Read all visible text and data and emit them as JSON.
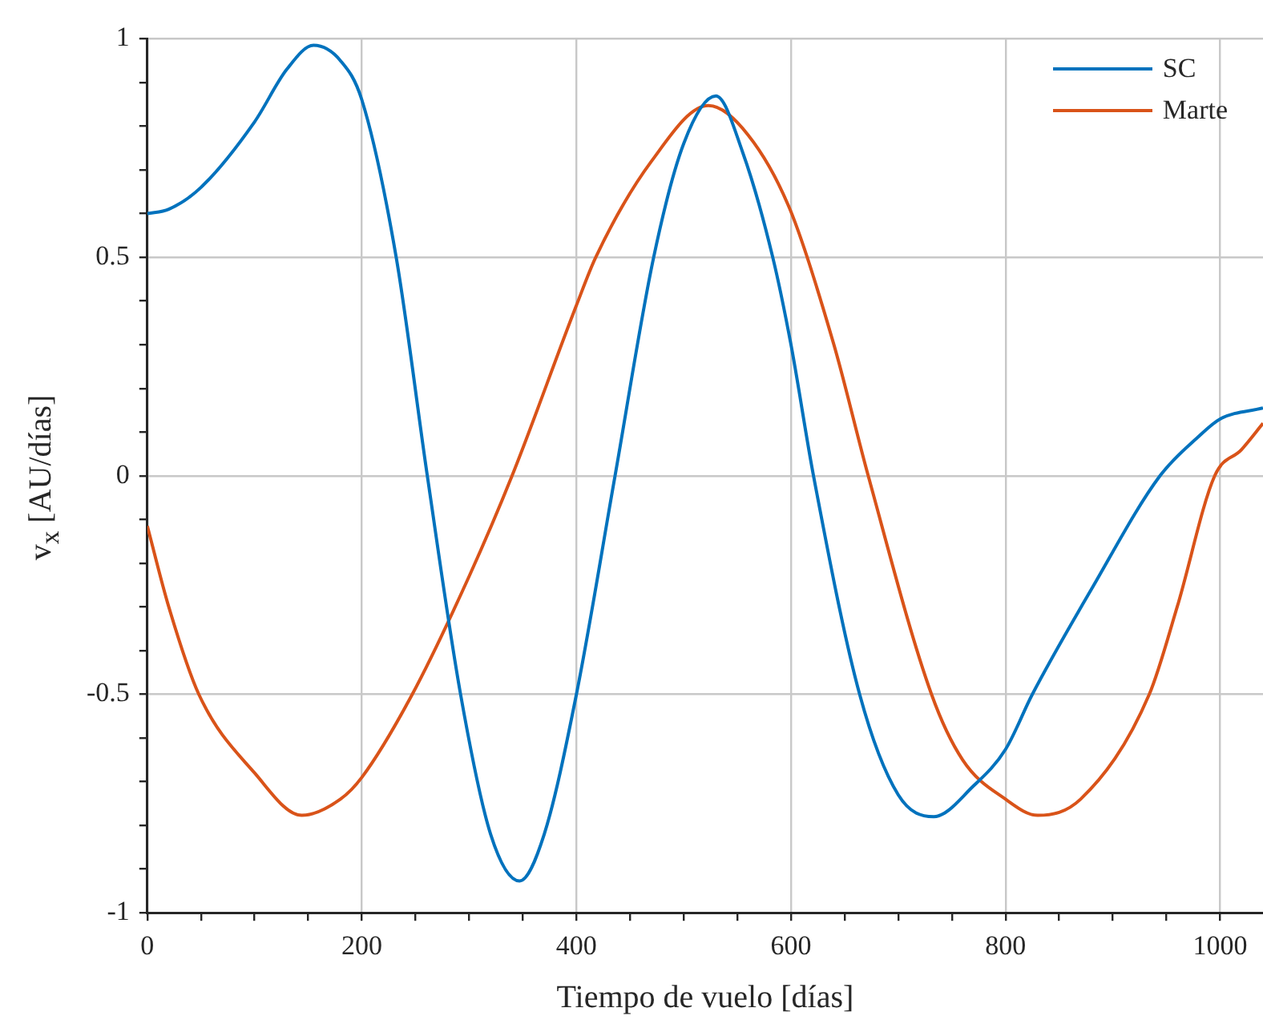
{
  "chart_data": {
    "type": "line",
    "xlabel": "Tiempo de vuelo [días]",
    "ylabel": "v$_{x}$ [AU/días]",
    "xlim": [
      0,
      1040
    ],
    "ylim": [
      -1,
      1
    ],
    "xticks": [
      0,
      {
        "value": 50,
        "label": null
      },
      {
        "value": 100,
        "label": null
      },
      {
        "value": 150,
        "label": null
      },
      200,
      {
        "value": 250,
        "label": null
      },
      {
        "value": 300,
        "label": null
      },
      {
        "value": 350,
        "label": null
      },
      400,
      {
        "value": 450,
        "label": null
      },
      {
        "value": 500,
        "label": null
      },
      {
        "value": 550,
        "label": null
      },
      600,
      {
        "value": 650,
        "label": null
      },
      {
        "value": 700,
        "label": null
      },
      {
        "value": 750,
        "label": null
      },
      800,
      {
        "value": 850,
        "label": null
      },
      {
        "value": 900,
        "label": null
      },
      {
        "value": 950,
        "label": null
      },
      1000
    ],
    "yticks": [
      -1,
      {
        "value": -0.9,
        "label": null
      },
      {
        "value": -0.8,
        "label": null
      },
      {
        "value": -0.7,
        "label": null
      },
      {
        "value": -0.6,
        "label": null
      },
      -0.5,
      {
        "value": -0.4,
        "label": null
      },
      {
        "value": -0.3,
        "label": null
      },
      {
        "value": -0.2,
        "label": null
      },
      {
        "value": -0.1,
        "label": null
      },
      0,
      {
        "value": 0.1,
        "label": null
      },
      {
        "value": 0.2,
        "label": null
      },
      {
        "value": 0.3,
        "label": null
      },
      {
        "value": 0.4,
        "label": null
      },
      0.5,
      {
        "value": 0.6,
        "label": null
      },
      {
        "value": 0.7,
        "label": null
      },
      {
        "value": 0.8,
        "label": null
      },
      {
        "value": 0.9,
        "label": null
      },
      1
    ],
    "grid": true,
    "legend": "top right",
    "marker": "none",
    "line_style": "solid",
    "series": [
      {
        "name": "SC",
        "color": "#0072bd",
        "x": [
          0,
          20,
          50,
          100,
          130,
          155,
          180,
          200,
          232,
          261,
          292,
          320,
          347,
          370,
          400,
          436,
          472,
          500,
          530,
          555,
          583,
          600,
          621,
          664,
          700,
          733,
          770,
          800,
          825,
          880,
          944,
          980,
          1000,
          1040
        ],
        "values": [
          0.6,
          0.61,
          0.66,
          0.81,
          0.93,
          0.985,
          0.95,
          0.86,
          0.5,
          0,
          -0.5,
          -0.82,
          -0.927,
          -0.82,
          -0.5,
          0,
          0.5,
          0.76,
          0.869,
          0.74,
          0.5,
          0.3,
          0,
          -0.5,
          -0.73,
          -0.78,
          -0.71,
          -0.626,
          -0.5,
          -0.26,
          0,
          0.09,
          0.13,
          0.155
        ]
      },
      {
        "name": "Marte",
        "color": "#d95319",
        "x": [
          0,
          20,
          48,
          100,
          144,
          180,
          200,
          247,
          300,
          340,
          400,
          418,
          470,
          523,
          560,
          599,
          640,
          672,
          731,
          760,
          800,
          830,
          870,
          934,
          960,
          995,
          1020,
          1040
        ],
        "values": [
          -0.115,
          -0.3,
          -0.5,
          -0.68,
          -0.777,
          -0.74,
          -0.69,
          -0.5,
          -0.23,
          0,
          0.39,
          0.5,
          0.72,
          0.847,
          0.78,
          0.61,
          0.3,
          0,
          -0.5,
          -0.65,
          -0.74,
          -0.777,
          -0.74,
          -0.5,
          -0.3,
          0,
          0.06,
          0.12
        ]
      }
    ]
  }
}
